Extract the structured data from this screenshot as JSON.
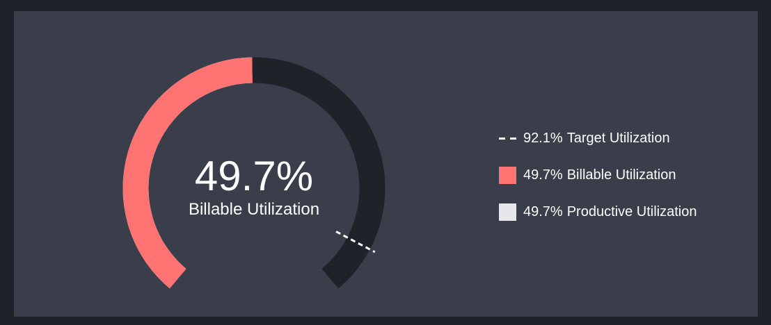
{
  "chart_data": {
    "type": "gauge",
    "center_value_label": "49.7%",
    "center_caption": "Billable Utilization",
    "range": [
      0,
      100
    ],
    "series": [
      {
        "name": "Billable Utilization",
        "value": 49.7,
        "label": "49.7%",
        "color": "#ff7373"
      },
      {
        "name": "Productive Utilization",
        "value": 49.7,
        "label": "49.7%",
        "color": "#e6e7ea"
      }
    ],
    "target": {
      "name": "Target Utilization",
      "value": 92.1,
      "label": "92.1%",
      "color": "#ffffff"
    },
    "track_color": "#20222a",
    "legend_position": "right"
  },
  "legend": [
    {
      "kind": "dash",
      "value": "92.1%",
      "name": "Target Utilization",
      "color": "#ffffff"
    },
    {
      "kind": "swatch",
      "value": "49.7%",
      "name": "Billable Utilization",
      "color": "#ff7373"
    },
    {
      "kind": "swatch",
      "value": "49.7%",
      "name": "Productive Utilization",
      "color": "#e6e7ea"
    }
  ]
}
